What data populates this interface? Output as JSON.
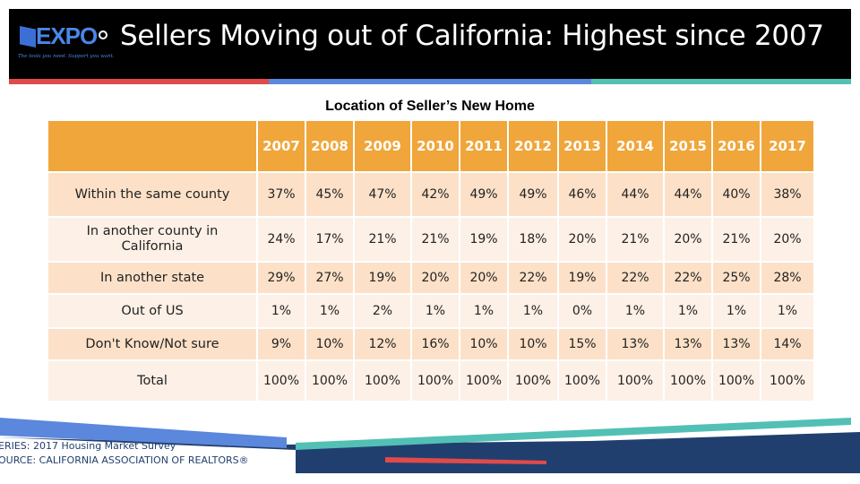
{
  "header": {
    "title": "Sellers Moving out of California: Highest since 2007",
    "logo_text": "EXPO",
    "logo_tagline": "The tools you need. Support you want."
  },
  "table": {
    "title": "Location of Seller’s New Home",
    "years": [
      "2007",
      "2008",
      "2009",
      "2010",
      "2011",
      "2012",
      "2013",
      "2014",
      "2015",
      "2016",
      "2017"
    ],
    "rows": [
      {
        "label": "Within the same county",
        "values": [
          "37%",
          "45%",
          "47%",
          "42%",
          "49%",
          "49%",
          "46%",
          "44%",
          "44%",
          "40%",
          "38%"
        ]
      },
      {
        "label": "In another county in California",
        "values": [
          "24%",
          "17%",
          "21%",
          "21%",
          "19%",
          "18%",
          "20%",
          "21%",
          "20%",
          "21%",
          "20%"
        ]
      },
      {
        "label": "In another state",
        "values": [
          "29%",
          "27%",
          "19%",
          "20%",
          "20%",
          "22%",
          "19%",
          "22%",
          "22%",
          "25%",
          "28%"
        ]
      },
      {
        "label": "Out of US",
        "values": [
          "1%",
          "1%",
          "2%",
          "1%",
          "1%",
          "1%",
          "0%",
          "1%",
          "1%",
          "1%",
          "1%"
        ]
      },
      {
        "label": "Don't Know/Not sure",
        "values": [
          "9%",
          "10%",
          "12%",
          "16%",
          "10%",
          "10%",
          "15%",
          "13%",
          "13%",
          "13%",
          "14%"
        ]
      },
      {
        "label": "Total",
        "values": [
          "100%",
          "100%",
          "100%",
          "100%",
          "100%",
          "100%",
          "100%",
          "100%",
          "100%",
          "100%",
          "100%"
        ]
      }
    ]
  },
  "footer": {
    "series": "ERIES: 2017 Housing Market Survey",
    "source": "OURCE:  CALIFORNIA ASSOCIATION OF REALTORS®"
  },
  "colors": {
    "header_bg": "#000000",
    "header_accent_blue": "#4a86e8",
    "table_header": "#f0a63a",
    "row_odd": "#fce1c8",
    "row_even": "#fdf0e6",
    "stripe_red": "#e04a4a",
    "stripe_blue": "#5b87dd",
    "stripe_teal": "#52c0b5",
    "footer_navy": "#213f6e"
  }
}
